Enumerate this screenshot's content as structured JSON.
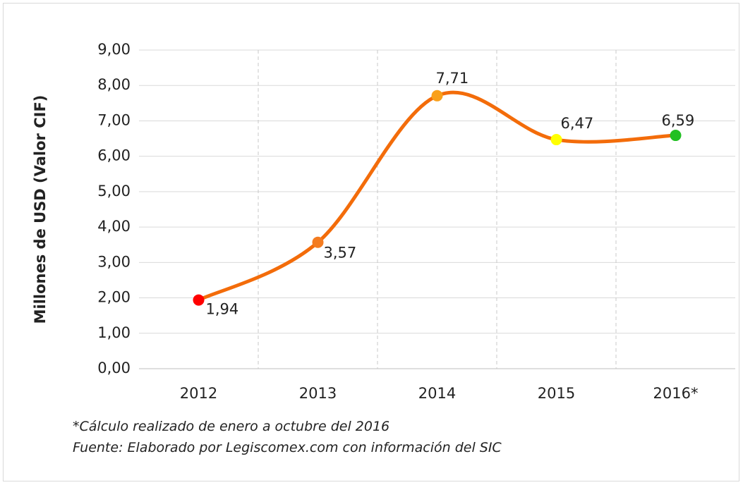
{
  "chart_data": {
    "type": "line",
    "y_axis_label": "Millones de USD (Valor CIF)",
    "categories": [
      "2012",
      "2013",
      "2014",
      "2015",
      "2016*"
    ],
    "series": [
      {
        "name": "Valor CIF",
        "color": "#f36c0a",
        "values": [
          1.94,
          3.57,
          7.71,
          6.47,
          6.59
        ],
        "value_labels": [
          "1,94",
          "3,57",
          "7,71",
          "6,47",
          "6,59"
        ],
        "point_colors": [
          "#ff0000",
          "#f47c20",
          "#f9a01b",
          "#ffff00",
          "#22c023"
        ]
      }
    ],
    "ylim": [
      0,
      9
    ],
    "yticks": [
      {
        "value": 0,
        "label": "0,00"
      },
      {
        "value": 1,
        "label": "1,00"
      },
      {
        "value": 2,
        "label": "2,00"
      },
      {
        "value": 3,
        "label": "3,00"
      },
      {
        "value": 4,
        "label": "4,00"
      },
      {
        "value": 5,
        "label": "5,00"
      },
      {
        "value": 6,
        "label": "6,00"
      },
      {
        "value": 7,
        "label": "7,00"
      },
      {
        "value": 8,
        "label": "8,00"
      },
      {
        "value": 9,
        "label": "9,00"
      }
    ],
    "grid": true,
    "notes": [
      "*Cálculo realizado de enero a octubre del 2016",
      "Fuente: Elaborado por Legiscomex.com con información del SIC"
    ]
  }
}
